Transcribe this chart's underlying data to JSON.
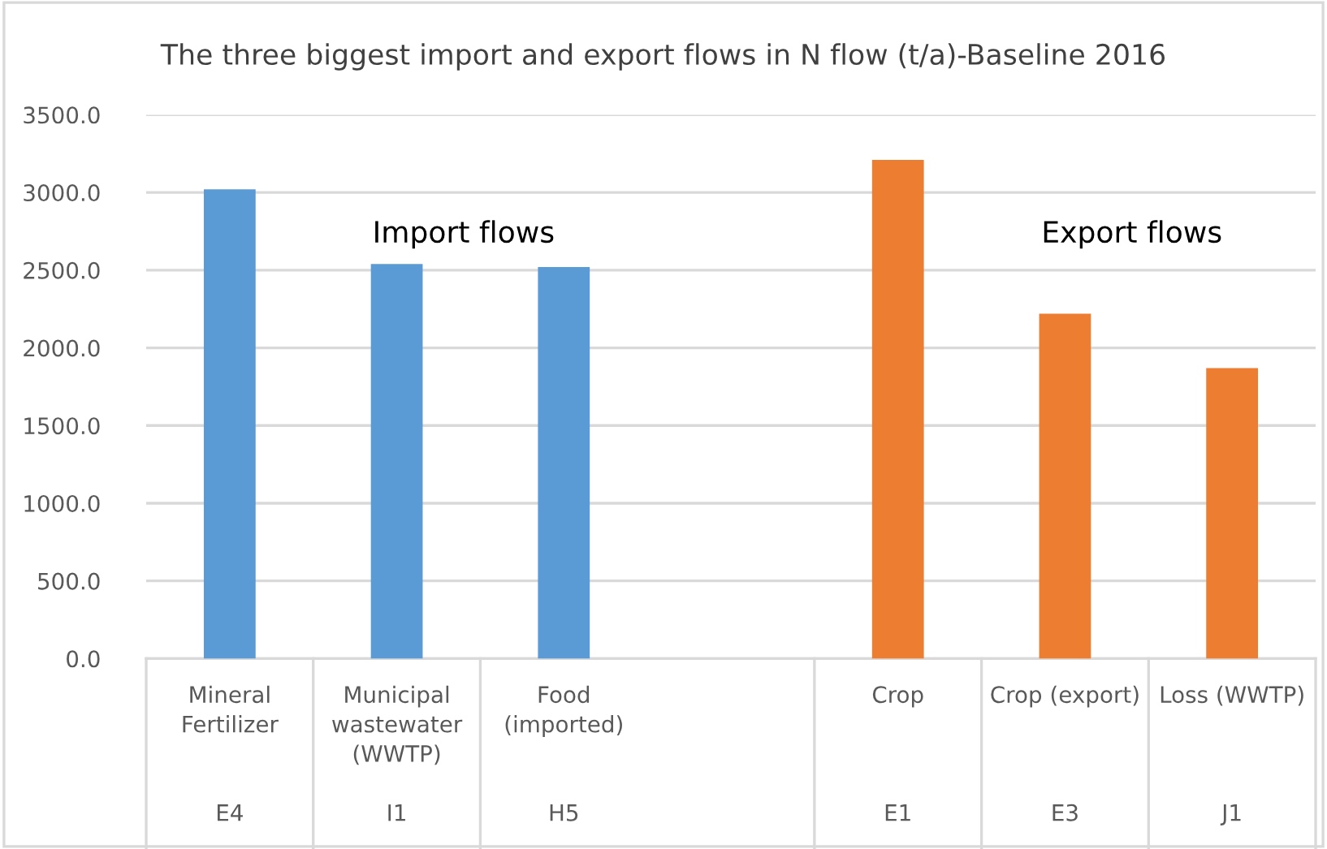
{
  "chart_data": {
    "type": "bar",
    "title": "The three biggest import and export flows in N flow (t/a)-Baseline 2016",
    "categories": [
      "Mineral\nFertilizer\n\n\nE4",
      "Municipal\nwastewater\n(WWTP)\n\nI1",
      "Food\n(imported)\n\n\nH5",
      null,
      "Crop\n\n\n\nE1",
      "Crop (export)\n\n\n\nE3",
      "Loss (WWTP)\n\n\n\nJ1"
    ],
    "values": [
      3020,
      2540,
      2520,
      null,
      3210,
      2220,
      1870
    ],
    "colors": [
      "#5b9bd5",
      "#5b9bd5",
      "#5b9bd5",
      "#5b9bd5",
      "#ed7d31",
      "#ed7d31",
      "#ed7d31"
    ],
    "ylim": [
      0,
      3500
    ],
    "yticks": [
      {
        "value": 0,
        "label": "0.0"
      },
      {
        "value": 500,
        "label": "500.0"
      },
      {
        "value": 1000,
        "label": "1000.0"
      },
      {
        "value": 1500,
        "label": "1500.0"
      },
      {
        "value": 2000,
        "label": "2000.0"
      },
      {
        "value": 2500,
        "label": "2500.0"
      },
      {
        "value": 3000,
        "label": "3000.0"
      },
      {
        "value": 3500,
        "label": "3500.0"
      }
    ],
    "grid": "y",
    "annotations": [
      "Import flows",
      "Export flows"
    ]
  }
}
